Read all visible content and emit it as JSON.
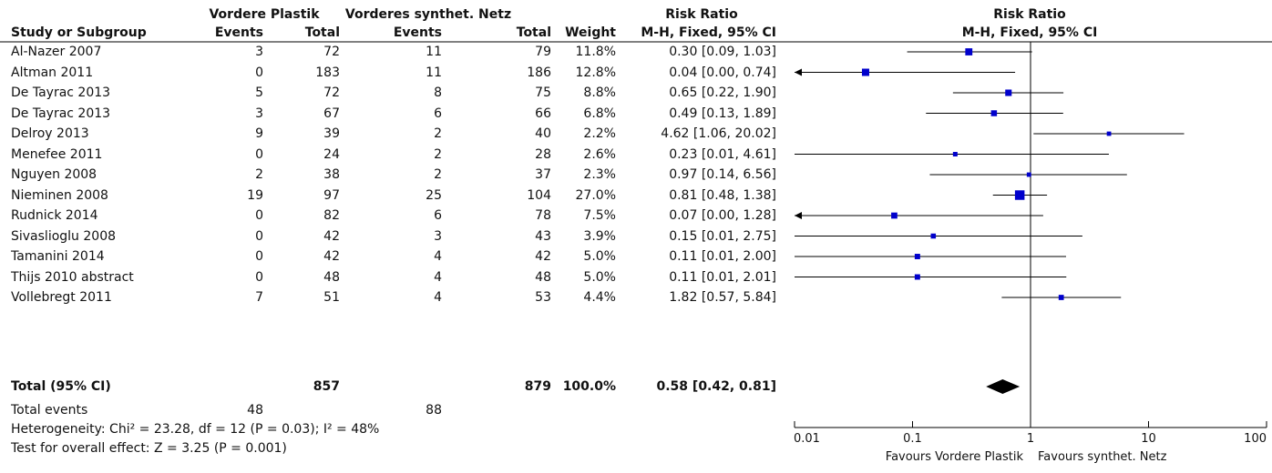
{
  "headers": {
    "group1": "Vordere Plastik",
    "group2": "Vorderes synthet. Netz",
    "rr_top": "Risk Ratio",
    "plot_top": "Risk Ratio",
    "study": "Study or Subgroup",
    "events1": "Events",
    "total1": "Total",
    "events2": "Events",
    "total2": "Total",
    "weight": "Weight",
    "rr_method": "M-H, Fixed, 95% CI",
    "plot_method": "M-H, Fixed, 95% CI"
  },
  "studies": [
    {
      "name": "Al-Nazer 2007",
      "e1": "3",
      "n1": "72",
      "e2": "11",
      "n2": "79",
      "weight": "11.8%",
      "ci": "0.30 [0.09, 1.03]"
    },
    {
      "name": "Altman 2011",
      "e1": "0",
      "n1": "183",
      "e2": "11",
      "n2": "186",
      "weight": "12.8%",
      "ci": "0.04 [0.00, 0.74]"
    },
    {
      "name": "De Tayrac 2013",
      "e1": "5",
      "n1": "72",
      "e2": "8",
      "n2": "75",
      "weight": "8.8%",
      "ci": "0.65 [0.22, 1.90]"
    },
    {
      "name": "De Tayrac 2013",
      "e1": "3",
      "n1": "67",
      "e2": "6",
      "n2": "66",
      "weight": "6.8%",
      "ci": "0.49 [0.13, 1.89]"
    },
    {
      "name": "Delroy 2013",
      "e1": "9",
      "n1": "39",
      "e2": "2",
      "n2": "40",
      "weight": "2.2%",
      "ci": "4.62 [1.06, 20.02]"
    },
    {
      "name": "Menefee 2011",
      "e1": "0",
      "n1": "24",
      "e2": "2",
      "n2": "28",
      "weight": "2.6%",
      "ci": "0.23 [0.01, 4.61]"
    },
    {
      "name": "Nguyen 2008",
      "e1": "2",
      "n1": "38",
      "e2": "2",
      "n2": "37",
      "weight": "2.3%",
      "ci": "0.97 [0.14, 6.56]"
    },
    {
      "name": "Nieminen 2008",
      "e1": "19",
      "n1": "97",
      "e2": "25",
      "n2": "104",
      "weight": "27.0%",
      "ci": "0.81 [0.48, 1.38]"
    },
    {
      "name": "Rudnick 2014",
      "e1": "0",
      "n1": "82",
      "e2": "6",
      "n2": "78",
      "weight": "7.5%",
      "ci": "0.07 [0.00, 1.28]"
    },
    {
      "name": "Sivaslioglu 2008",
      "e1": "0",
      "n1": "42",
      "e2": "3",
      "n2": "43",
      "weight": "3.9%",
      "ci": "0.15 [0.01, 2.75]"
    },
    {
      "name": "Tamanini 2014",
      "e1": "0",
      "n1": "42",
      "e2": "4",
      "n2": "42",
      "weight": "5.0%",
      "ci": "0.11 [0.01, 2.00]"
    },
    {
      "name": "Thijs 2010 abstract",
      "e1": "0",
      "n1": "48",
      "e2": "4",
      "n2": "48",
      "weight": "5.0%",
      "ci": "0.11 [0.01, 2.01]"
    },
    {
      "name": "Vollebregt 2011",
      "e1": "7",
      "n1": "51",
      "e2": "4",
      "n2": "53",
      "weight": "4.4%",
      "ci": "1.82 [0.57, 5.84]"
    }
  ],
  "total": {
    "name": "Total (95% CI)",
    "n1": "857",
    "n2": "879",
    "weight": "100.0%",
    "ci": "0.58 [0.42, 0.81]"
  },
  "total_events": {
    "label": "Total events",
    "e1": "48",
    "e2": "88"
  },
  "heterogeneity": "Heterogeneity: Chi² = 23.28, df = 12 (P = 0.03); I² = 48%",
  "overall_effect": "Test for overall effect: Z = 3.25 (P = 0.001)",
  "chart_data": {
    "type": "forest",
    "scale": "log",
    "xlim": [
      0.01,
      100
    ],
    "ticks": [
      0.01,
      0.1,
      1,
      10,
      100
    ],
    "tick_labels": [
      "0.01",
      "0.1",
      "1",
      "10",
      "100"
    ],
    "reference_line": 1,
    "favours_left": "Favours Vordere Plastik",
    "favours_right": "Favours synthet. Netz",
    "marker_color": "#0000cc",
    "diamond_color": "#000000",
    "points": [
      {
        "rr": 0.3,
        "lo": 0.09,
        "hi": 1.03,
        "weight": 11.8
      },
      {
        "rr": 0.04,
        "lo": 0.0,
        "hi": 0.74,
        "weight": 12.8
      },
      {
        "rr": 0.65,
        "lo": 0.22,
        "hi": 1.9,
        "weight": 8.8
      },
      {
        "rr": 0.49,
        "lo": 0.13,
        "hi": 1.89,
        "weight": 6.8
      },
      {
        "rr": 4.62,
        "lo": 1.06,
        "hi": 20.02,
        "weight": 2.2
      },
      {
        "rr": 0.23,
        "lo": 0.01,
        "hi": 4.61,
        "weight": 2.6
      },
      {
        "rr": 0.97,
        "lo": 0.14,
        "hi": 6.56,
        "weight": 2.3
      },
      {
        "rr": 0.81,
        "lo": 0.48,
        "hi": 1.38,
        "weight": 27.0
      },
      {
        "rr": 0.07,
        "lo": 0.0,
        "hi": 1.28,
        "weight": 7.5
      },
      {
        "rr": 0.15,
        "lo": 0.01,
        "hi": 2.75,
        "weight": 3.9
      },
      {
        "rr": 0.11,
        "lo": 0.01,
        "hi": 2.0,
        "weight": 5.0
      },
      {
        "rr": 0.11,
        "lo": 0.01,
        "hi": 2.01,
        "weight": 5.0
      },
      {
        "rr": 1.82,
        "lo": 0.57,
        "hi": 5.84,
        "weight": 4.4
      }
    ],
    "pooled": {
      "rr": 0.58,
      "lo": 0.42,
      "hi": 0.81
    }
  }
}
